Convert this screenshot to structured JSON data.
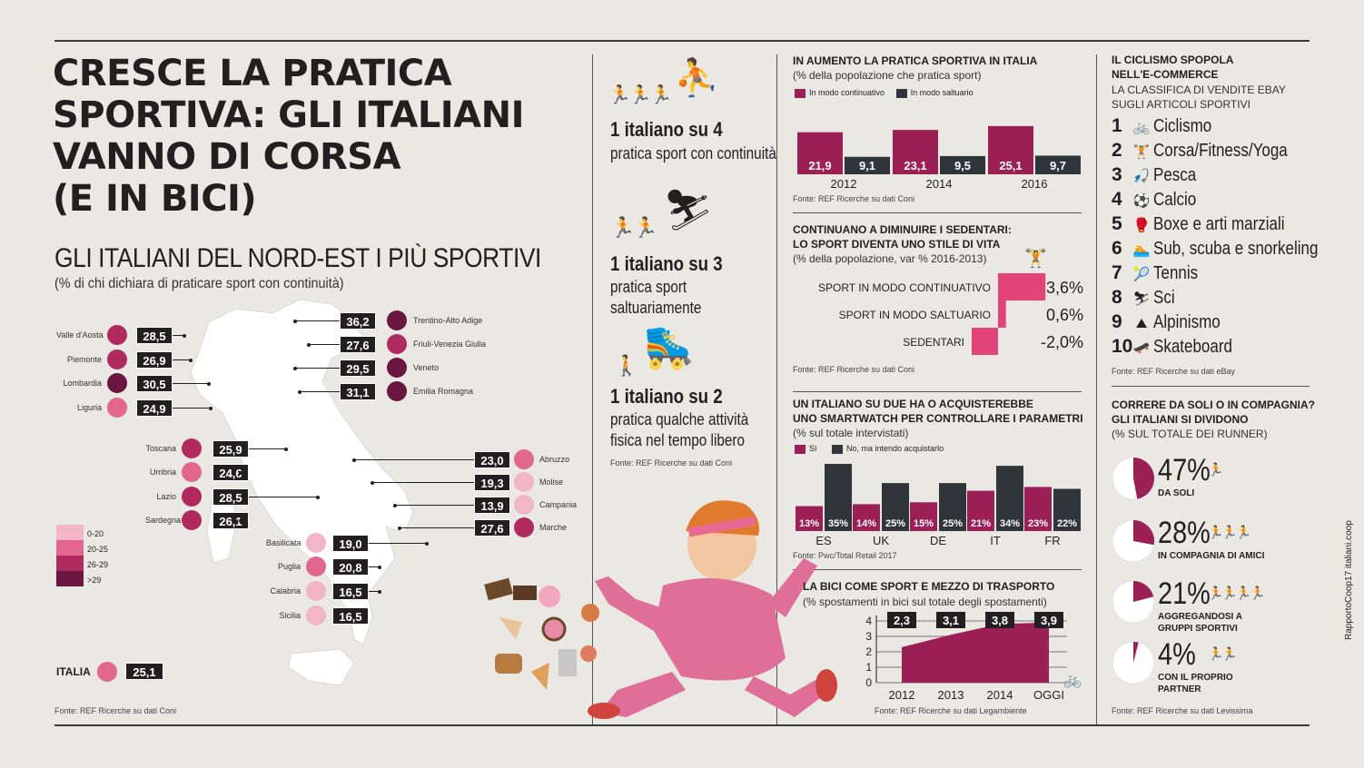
{
  "title_lines": [
    "CRESCE LA PRATICA",
    "SPORTIVA: GLI ITALIANI",
    "VANNO DI CORSA",
    "(E IN BICI)"
  ],
  "map_section": {
    "title": "GLI ITALIANI DEL NORD-EST I PIÙ SPORTIVI",
    "subtitle": "(% di chi dichiara di praticare sport con continuità)",
    "source": "Fonte: REF Ricerche su dati Coni",
    "legend": [
      {
        "label": "0-20",
        "color": "#f2b6c8"
      },
      {
        "label": "20-25",
        "color": "#e2668f"
      },
      {
        "label": "26-29",
        "color": "#b02a5d"
      },
      {
        "label": ">29",
        "color": "#6b1640"
      }
    ],
    "regions": [
      {
        "name": "Valle d'Aosta",
        "value": "28,5",
        "color": "#b02a5d"
      },
      {
        "name": "Piemonte",
        "value": "26,9",
        "color": "#b02a5d"
      },
      {
        "name": "Lombardia",
        "value": "30,5",
        "color": "#6b1640"
      },
      {
        "name": "Liguria",
        "value": "24,9",
        "color": "#e2668f"
      },
      {
        "name": "Trentino-Alto Adige",
        "value": "36,2",
        "color": "#6b1640"
      },
      {
        "name": "Friuli-Venezia Giulia",
        "value": "27,6",
        "color": "#b02a5d"
      },
      {
        "name": "Veneto",
        "value": "29,5",
        "color": "#6b1640"
      },
      {
        "name": "Emilia Romagna",
        "value": "31,1",
        "color": "#6b1640"
      },
      {
        "name": "Toscana",
        "value": "25,9",
        "color": "#b02a5d"
      },
      {
        "name": "Umbria",
        "value": "24,6",
        "color": "#e2668f"
      },
      {
        "name": "Lazio",
        "value": "28,5",
        "color": "#b02a5d"
      },
      {
        "name": "Sardegna",
        "value": "26,1",
        "color": "#b02a5d"
      },
      {
        "name": "Abruzzo",
        "value": "23,0",
        "color": "#e2668f"
      },
      {
        "name": "Molise",
        "value": "19,3",
        "color": "#f2b6c8"
      },
      {
        "name": "Campania",
        "value": "13,9",
        "color": "#f2b6c8"
      },
      {
        "name": "Marche",
        "value": "27,6",
        "color": "#b02a5d"
      },
      {
        "name": "Basilicata",
        "value": "19,0",
        "color": "#f2b6c8"
      },
      {
        "name": "Puglia",
        "value": "20,8",
        "color": "#e2668f"
      },
      {
        "name": "Calabria",
        "value": "16,5",
        "color": "#f2b6c8"
      },
      {
        "name": "Sicilia",
        "value": "16,5",
        "color": "#f2b6c8"
      }
    ],
    "italia": {
      "name": "ITALIA",
      "value": "25,1",
      "color": "#e2668f"
    }
  },
  "stats": [
    {
      "big": "1 italiano su 4",
      "text": "pratica sport con continuità",
      "icon": "basketball-player-icon"
    },
    {
      "big": "1 italiano su 3",
      "text": "pratica sport saltuariamente",
      "icon": "skier-icon"
    },
    {
      "big": "1 italiano su 2",
      "text": "pratica qualche attività fisica nel  tempo libero",
      "icon": "rollerblader-icon"
    }
  ],
  "stats_source": "Fonte: REF Ricerche su dati Coni",
  "chart_data": [
    {
      "type": "bar",
      "title": "IN AUMENTO LA PRATICA SPORTIVA IN ITALIA",
      "subtitle": "(% della popolazione che pratica sport)",
      "categories": [
        "2012",
        "2014",
        "2016"
      ],
      "series": [
        {
          "name": "In modo continuativo",
          "values": [
            21.9,
            23.1,
            25.1
          ],
          "labels": [
            "21,9",
            "23,1",
            "25,1"
          ],
          "color": "#9c1f55"
        },
        {
          "name": "In modo saltuario",
          "values": [
            9.1,
            9.5,
            9.7
          ],
          "labels": [
            "9,1",
            "9,5",
            "9,7"
          ],
          "color": "#2f3539"
        }
      ],
      "source": "Fonte: REF Ricerche su dati Coni"
    },
    {
      "type": "bar",
      "title_lines": [
        "CONTINUANO A DIMINUIRE I SEDENTARI:",
        "LO SPORT DIVENTA UNO STILE DI VITA"
      ],
      "subtitle": "(% della popolazione, var % 2016-2013)",
      "categories": [
        "SPORT IN MODO CONTINUATIVO",
        "SPORT IN MODO SALTUARIO",
        "SEDENTARI"
      ],
      "values": [
        3.6,
        0.6,
        -2.0
      ],
      "labels": [
        "3,6%",
        "0,6%",
        "-2,0%"
      ],
      "color": "#e2447a",
      "source": "Fonte: REF Ricerche su dati Coni"
    },
    {
      "type": "bar",
      "title_lines": [
        "UN ITALIANO SU DUE HA O ACQUISTEREBBE",
        "UNO SMARTWATCH PER CONTROLLARE I PARAMETRI"
      ],
      "subtitle": "(% sul totale intervistati)",
      "categories": [
        "ES",
        "UK",
        "DE",
        "IT",
        "FR"
      ],
      "series": [
        {
          "name": "Sì",
          "values": [
            13,
            14,
            15,
            21,
            23
          ],
          "labels": [
            "13%",
            "14%",
            "15%",
            "21%",
            "23%"
          ],
          "color": "#9c1f55"
        },
        {
          "name": "No, ma intendo acquistarlo",
          "values": [
            35,
            25,
            25,
            34,
            22
          ],
          "labels": [
            "35%",
            "25%",
            "25%",
            "34%",
            "22%"
          ],
          "color": "#2f3539"
        }
      ],
      "source": "Fonte: Pwc/Total Retail 2017"
    },
    {
      "type": "area",
      "title": "LA BICI COME SPORT E MEZZO DI TRASPORTO",
      "subtitle": "(% spostamenti in bici sul totale degli spostamenti)",
      "categories": [
        "2012",
        "2013",
        "2014",
        "OGGI"
      ],
      "values": [
        2.3,
        3.1,
        3.8,
        3.9
      ],
      "labels": [
        "2,3",
        "3,1",
        "3,8",
        "3,9"
      ],
      "y_ticks": [
        "0",
        "1",
        "2",
        "3",
        "4"
      ],
      "ylim": [
        0,
        4
      ],
      "color": "#9c1f55",
      "source": "Fonte: REF Ricerche su dati Legambiente"
    },
    {
      "type": "pie",
      "title": "CORRERE DA SOLI O IN COMPAGNIA? GLI ITALIANI SI DIVIDONO",
      "subtitle": "(% SUL TOTALE DEI RUNNER)",
      "values": [
        47,
        28,
        21,
        4
      ],
      "labels": [
        "47%",
        "28%",
        "21%",
        "4%"
      ],
      "categories": [
        "DA SOLI",
        "IN COMPAGNIA DI AMICI",
        "AGGREGANDOSI A GRUPPI SPORTIVI",
        "CON IL PROPRIO PARTNER"
      ],
      "color": "#9c1f55",
      "source": "Fonte: REF Ricerche su dati Levissima"
    }
  ],
  "ebay_section": {
    "title_lines": [
      "IL CICLISMO SPOPOLA",
      "NELL'E-COMMERCE"
    ],
    "subtitle_lines": [
      "LA CLASSIFICA DI VENDITE EBAY",
      "SUGLI ARTICOLI SPORTIVI"
    ],
    "items": [
      {
        "rank": "1",
        "name": "Ciclismo",
        "icon": "bicycle-icon",
        "glyph": "🚲"
      },
      {
        "rank": "2",
        "name": "Corsa/Fitness/Yoga",
        "icon": "weightlifter-icon",
        "glyph": "🏋"
      },
      {
        "rank": "3",
        "name": "Pesca",
        "icon": "fishing-icon",
        "glyph": "🎣"
      },
      {
        "rank": "4",
        "name": "Calcio",
        "icon": "soccer-icon",
        "glyph": "⚽"
      },
      {
        "rank": "5",
        "name": "Boxe e arti marziali",
        "icon": "boxing-icon",
        "glyph": "🥊"
      },
      {
        "rank": "6",
        "name": "Sub, scuba e snorkeling",
        "icon": "diver-icon",
        "glyph": "🏊"
      },
      {
        "rank": "7",
        "name": "Tennis",
        "icon": "tennis-icon",
        "glyph": "🎾"
      },
      {
        "rank": "8",
        "name": "Sci",
        "icon": "ski-icon",
        "glyph": "⛷"
      },
      {
        "rank": "9",
        "name": "Alpinismo",
        "icon": "climber-icon",
        "glyph": "⛰"
      },
      {
        "rank": "10",
        "name": "Skateboard",
        "icon": "skateboard-icon",
        "glyph": "🛹"
      }
    ],
    "source": "Fonte: REF Ricerche su dati eBay"
  },
  "sedentari_icon": "weightlifter-icon",
  "side_text": "RapportoCoop17 italiani.coop",
  "colors": {
    "accent": "#9c1f55",
    "pink": "#e2447a",
    "dark": "#2f3539",
    "background": "#e9e8e3"
  }
}
